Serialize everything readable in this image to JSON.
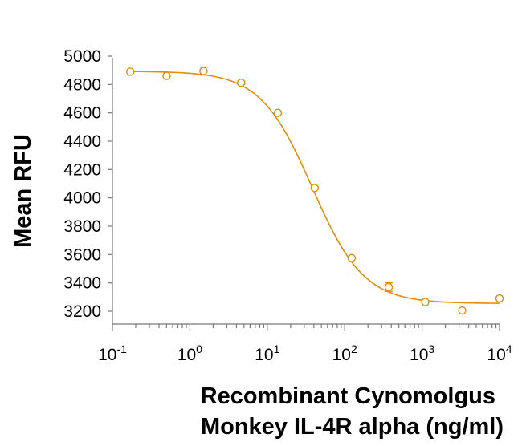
{
  "chart_data": {
    "type": "scatter",
    "ylabel": "Mean RFU",
    "xlabel_lines": [
      "Recombinant Cynomolgus",
      "Monkey IL-4R alpha (ng/ml)"
    ],
    "x_scale": "log",
    "xlim": [
      0.1,
      10000
    ],
    "ylim": [
      3100,
      5000
    ],
    "y_ticks": [
      3200,
      3400,
      3600,
      3800,
      4000,
      4200,
      4400,
      4600,
      4800,
      5000
    ],
    "x_tick_labels": [
      {
        "base": "10",
        "exp": "-1"
      },
      {
        "base": "10",
        "exp": "0"
      },
      {
        "base": "10",
        "exp": "1"
      },
      {
        "base": "10",
        "exp": "2"
      },
      {
        "base": "10",
        "exp": "3"
      },
      {
        "base": "10",
        "exp": "4"
      }
    ],
    "points": [
      {
        "x": 0.17,
        "y": 4890,
        "err": 0
      },
      {
        "x": 0.5,
        "y": 4860,
        "err": 0
      },
      {
        "x": 1.5,
        "y": 4895,
        "err": 28
      },
      {
        "x": 4.6,
        "y": 4812,
        "err": 12
      },
      {
        "x": 13.7,
        "y": 4600,
        "err": 0
      },
      {
        "x": 41,
        "y": 4070,
        "err": 0
      },
      {
        "x": 123,
        "y": 3575,
        "err": 0
      },
      {
        "x": 370,
        "y": 3370,
        "err": 30
      },
      {
        "x": 1100,
        "y": 3265,
        "err": 0
      },
      {
        "x": 3300,
        "y": 3205,
        "err": 0
      },
      {
        "x": 10000,
        "y": 3290,
        "err": 0
      }
    ],
    "fit": {
      "model": "4PL",
      "top": 4893,
      "bottom": 3255,
      "ec50": 38,
      "hill": 1.3
    },
    "color": "#E08E0B",
    "grid": false
  }
}
